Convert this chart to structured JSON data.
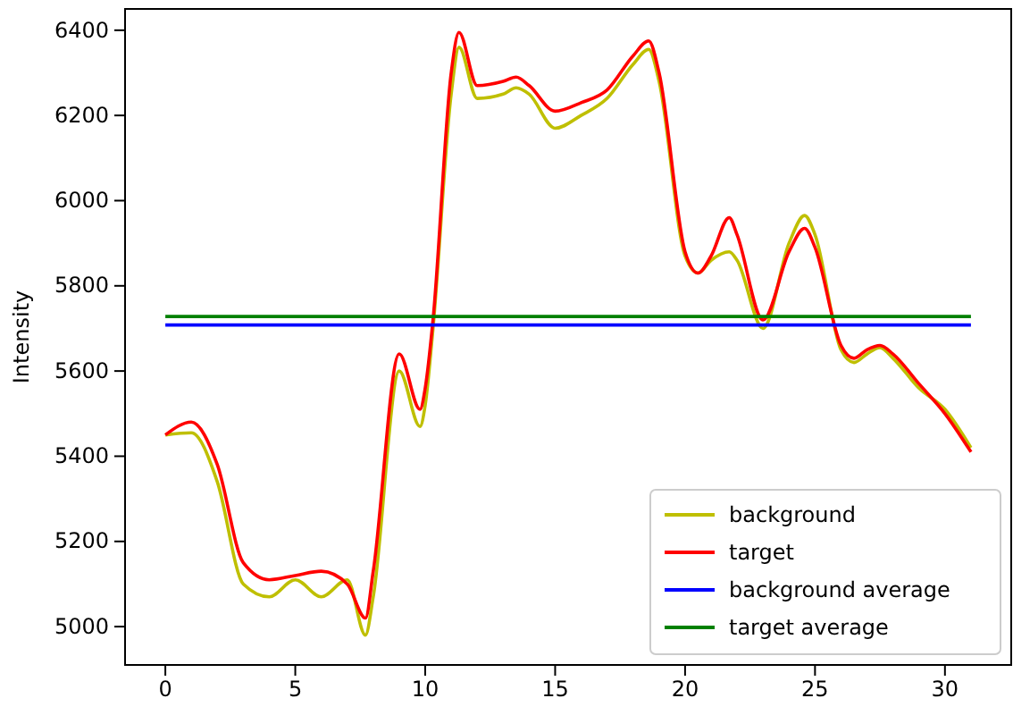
{
  "chart_data": {
    "type": "line",
    "ylabel": "Intensity",
    "xlim": [
      -1.55,
      32.55
    ],
    "xticks": [
      0,
      5,
      10,
      15,
      20,
      25,
      30
    ],
    "ylim": [
      4910,
      6450
    ],
    "yticks": [
      5000,
      5200,
      5400,
      5600,
      5800,
      6000,
      6200,
      6400
    ],
    "grid": false,
    "legend": "bottom right",
    "line_style": "solid",
    "marker": "none",
    "x": [
      0,
      1,
      2,
      3,
      4,
      5,
      6,
      7,
      7.7,
      8,
      9,
      9.8,
      10,
      10.3,
      11,
      11.3,
      12,
      13,
      13.5,
      14,
      15,
      16,
      17,
      18,
      18.6,
      19,
      20,
      20.5,
      21,
      21.7,
      22,
      23,
      24,
      24.6,
      25,
      26,
      26.5,
      27,
      27.5,
      28,
      29,
      30,
      31
    ],
    "series": [
      {
        "name": "background",
        "color": "#bfbf00",
        "values": [
          5450,
          5455,
          5340,
          5100,
          5070,
          5110,
          5070,
          5110,
          4980,
          5070,
          5600,
          5470,
          5520,
          5700,
          6250,
          6360,
          6240,
          6250,
          6265,
          6250,
          6170,
          6200,
          6240,
          6320,
          6355,
          6280,
          5870,
          5830,
          5860,
          5880,
          5860,
          5700,
          5900,
          5965,
          5920,
          5650,
          5620,
          5640,
          5655,
          5630,
          5560,
          5510,
          5420
        ]
      },
      {
        "name": "target",
        "color": "#ff0000",
        "values": [
          5450,
          5480,
          5380,
          5150,
          5110,
          5120,
          5130,
          5100,
          5020,
          5130,
          5640,
          5510,
          5560,
          5720,
          6300,
          6395,
          6270,
          6280,
          6290,
          6270,
          6210,
          6230,
          6260,
          6340,
          6375,
          6300,
          5880,
          5830,
          5870,
          5960,
          5920,
          5720,
          5880,
          5935,
          5890,
          5660,
          5630,
          5650,
          5660,
          5640,
          5570,
          5500,
          5410
        ]
      },
      {
        "name": "background average",
        "color": "#0000ff",
        "values": [
          5708,
          5708,
          5708,
          5708,
          5708,
          5708,
          5708,
          5708,
          5708,
          5708,
          5708,
          5708,
          5708,
          5708,
          5708,
          5708,
          5708,
          5708,
          5708,
          5708,
          5708,
          5708,
          5708,
          5708,
          5708,
          5708,
          5708,
          5708,
          5708,
          5708,
          5708,
          5708,
          5708,
          5708,
          5708,
          5708,
          5708,
          5708,
          5708,
          5708,
          5708,
          5708,
          5708
        ]
      },
      {
        "name": "target average",
        "color": "#008000",
        "values": [
          5728,
          5728,
          5728,
          5728,
          5728,
          5728,
          5728,
          5728,
          5728,
          5728,
          5728,
          5728,
          5728,
          5728,
          5728,
          5728,
          5728,
          5728,
          5728,
          5728,
          5728,
          5728,
          5728,
          5728,
          5728,
          5728,
          5728,
          5728,
          5728,
          5728,
          5728,
          5728,
          5728,
          5728,
          5728,
          5728,
          5728,
          5728,
          5728,
          5728,
          5728,
          5728,
          5728
        ]
      }
    ]
  }
}
